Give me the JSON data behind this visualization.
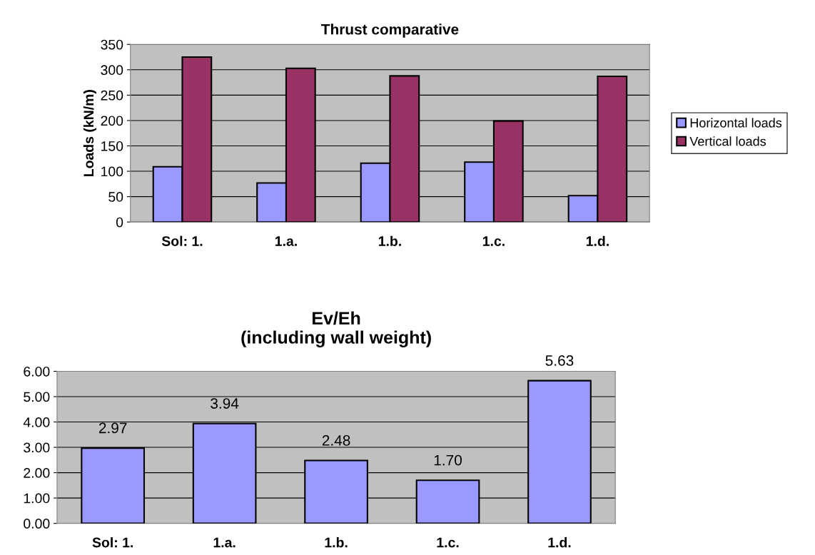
{
  "chart_data": [
    {
      "type": "bar",
      "title": "Thrust comparative",
      "ylabel": "Loads (kN/m)",
      "categories": [
        "Sol: 1.",
        "1.a.",
        "1.b.",
        "1.c.",
        "1.d."
      ],
      "series": [
        {
          "name": "Horizontal loads",
          "color": "#9999ff",
          "values": [
            109,
            77,
            116,
            118,
            52
          ]
        },
        {
          "name": "Vertical loads",
          "color": "#993366",
          "values": [
            325,
            303,
            288,
            199,
            287
          ]
        }
      ],
      "ylim": [
        0,
        350
      ],
      "yticks": [
        0,
        50,
        100,
        150,
        200,
        250,
        300,
        350
      ],
      "grid": "y",
      "legend": "right"
    },
    {
      "type": "bar",
      "title": "Ev/Eh\n(including wall weight)",
      "categories": [
        "Sol: 1.",
        "1.a.",
        "1.b.",
        "1.c.",
        "1.d."
      ],
      "values": [
        2.97,
        3.94,
        2.48,
        1.7,
        5.63
      ],
      "color": "#9999ff",
      "value_labels": [
        "2.97",
        "3.94",
        "2.48",
        "1.70",
        "5.63"
      ],
      "ylim": [
        0,
        6
      ],
      "yticks": [
        {
          "value": 0,
          "label": "0.00"
        },
        {
          "value": 1,
          "label": "1.00"
        },
        {
          "value": 2,
          "label": "2.00"
        },
        {
          "value": 3,
          "label": "3.00"
        },
        {
          "value": 4,
          "label": "4.00"
        },
        {
          "value": 5,
          "label": "5.00"
        },
        {
          "value": 6,
          "label": "6.00"
        }
      ],
      "grid": "y"
    }
  ]
}
